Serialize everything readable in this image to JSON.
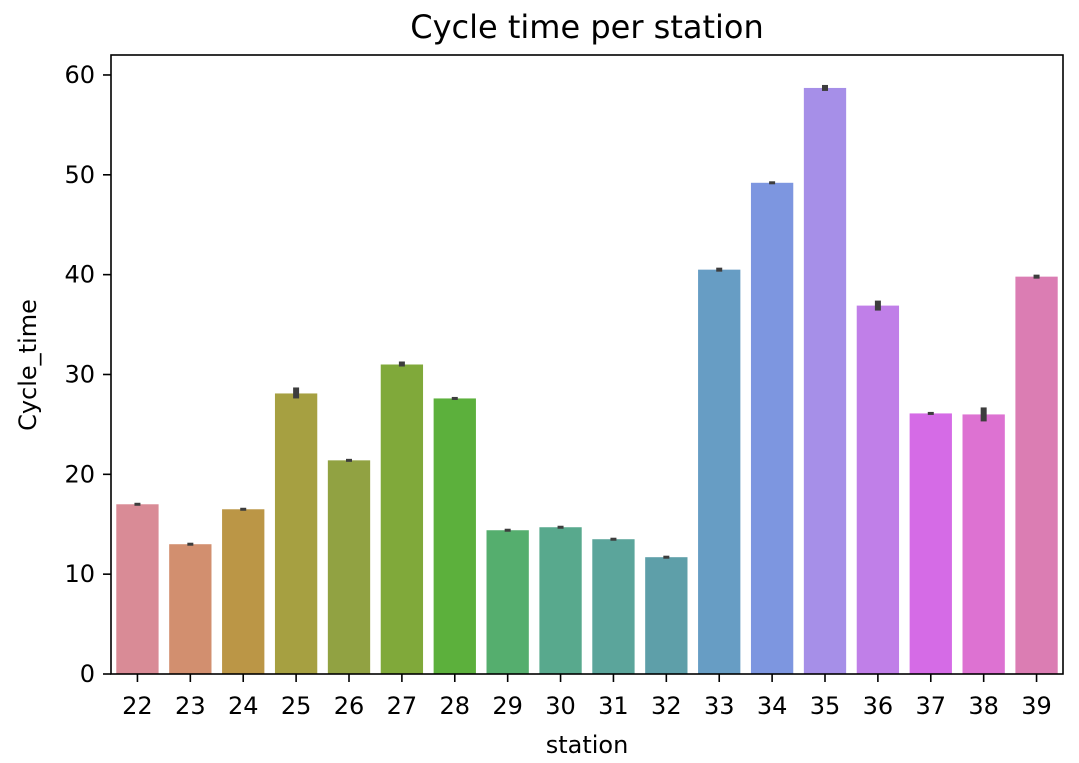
{
  "chart_data": {
    "type": "bar",
    "title": "Cycle time per station",
    "xlabel": "station",
    "ylabel": "Cycle_time",
    "categories": [
      "22",
      "23",
      "24",
      "25",
      "26",
      "27",
      "28",
      "29",
      "30",
      "31",
      "32",
      "33",
      "34",
      "35",
      "36",
      "37",
      "38",
      "39"
    ],
    "values": [
      17.0,
      13.0,
      16.5,
      28.1,
      21.4,
      31.0,
      27.6,
      14.4,
      14.7,
      13.5,
      11.7,
      40.5,
      49.2,
      58.7,
      36.9,
      26.1,
      26.0,
      39.8
    ],
    "error_low": [
      16.9,
      12.95,
      16.45,
      27.6,
      21.35,
      30.8,
      27.5,
      14.3,
      14.65,
      13.4,
      11.6,
      40.3,
      49.15,
      58.4,
      36.4,
      26.05,
      25.3,
      39.6
    ],
    "error_high": [
      17.1,
      13.05,
      16.55,
      28.7,
      21.5,
      31.3,
      27.7,
      14.5,
      14.75,
      13.6,
      11.85,
      40.7,
      49.25,
      59.0,
      37.4,
      26.15,
      26.7,
      40.0
    ],
    "colors": [
      "#d98b96",
      "#d28f6f",
      "#bb9646",
      "#a6a041",
      "#91a242",
      "#80a93a",
      "#5cb03c",
      "#55ae6e",
      "#58a98d",
      "#5ba59b",
      "#5e9fa9",
      "#679dc4",
      "#7d96e0",
      "#a68fe8",
      "#c07fe8",
      "#d56be6",
      "#dd72d2",
      "#db7db3"
    ],
    "ylim": [
      0,
      62
    ],
    "yticks": [
      0,
      10,
      20,
      30,
      40,
      50,
      60
    ],
    "grid": false
  }
}
